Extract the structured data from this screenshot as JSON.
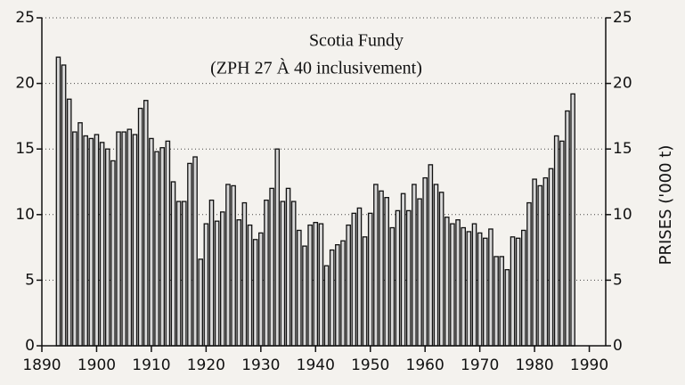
{
  "chart_data": {
    "type": "bar",
    "title": "Scotia Fundy",
    "subtitle": "(ZPH 27 À 40 inclusivement)",
    "y2label": "PRISES ('000 t)",
    "x": [
      1893,
      1894,
      1895,
      1896,
      1897,
      1898,
      1899,
      1900,
      1901,
      1902,
      1903,
      1904,
      1905,
      1906,
      1907,
      1908,
      1909,
      1910,
      1911,
      1912,
      1913,
      1914,
      1915,
      1916,
      1917,
      1918,
      1919,
      1920,
      1921,
      1922,
      1923,
      1924,
      1925,
      1926,
      1927,
      1928,
      1929,
      1930,
      1931,
      1932,
      1933,
      1934,
      1935,
      1936,
      1937,
      1938,
      1939,
      1940,
      1941,
      1942,
      1943,
      1944,
      1945,
      1946,
      1947,
      1948,
      1949,
      1950,
      1951,
      1952,
      1953,
      1954,
      1955,
      1956,
      1957,
      1958,
      1959,
      1960,
      1961,
      1962,
      1963,
      1964,
      1965,
      1966,
      1967,
      1968,
      1969,
      1970,
      1971,
      1972,
      1973,
      1974,
      1975,
      1976,
      1977,
      1978,
      1979,
      1980,
      1981,
      1982,
      1983,
      1984,
      1985,
      1986,
      1987
    ],
    "values": [
      22,
      21.4,
      18.8,
      16.3,
      17,
      16,
      15.8,
      16.1,
      15.5,
      15,
      14.1,
      16.3,
      16.3,
      16.5,
      16.1,
      18.1,
      18.7,
      15.8,
      14.8,
      15.1,
      15.6,
      12.5,
      11,
      11,
      13.9,
      14.4,
      6.6,
      9.3,
      11.1,
      9.5,
      10.2,
      12.3,
      12.2,
      9.6,
      10.9,
      9.2,
      8.1,
      8.6,
      11.1,
      12,
      15,
      11,
      12,
      11,
      8.8,
      7.6,
      9.2,
      9.4,
      9.3,
      6.1,
      7.3,
      7.7,
      8,
      9.2,
      10.1,
      10.5,
      8.3,
      10.1,
      12.3,
      11.8,
      11.3,
      9,
      10.3,
      11.6,
      10.3,
      12.3,
      11.2,
      12.8,
      13.8,
      12.3,
      11.7,
      9.8,
      9.3,
      9.6,
      9,
      8.7,
      9.3,
      8.6,
      8.2,
      8.9,
      6.8,
      6.8,
      5.8,
      8.3,
      8.2,
      8.8,
      10.9,
      12.7,
      12.2,
      12.8,
      13.5,
      16,
      15.6,
      17.9,
      19.2
    ],
    "color": "#d8d8d8",
    "xlim": [
      1890,
      1993
    ],
    "xticks": [
      1890,
      1900,
      1910,
      1920,
      1930,
      1940,
      1950,
      1960,
      1970,
      1980,
      1990
    ],
    "ylim": [
      0,
      25
    ],
    "yticks": [
      0,
      5,
      10,
      15,
      20,
      25
    ],
    "y2lim": [
      0,
      25
    ],
    "y2ticks": [
      0,
      5,
      10,
      15,
      20,
      25
    ],
    "grid": true
  }
}
